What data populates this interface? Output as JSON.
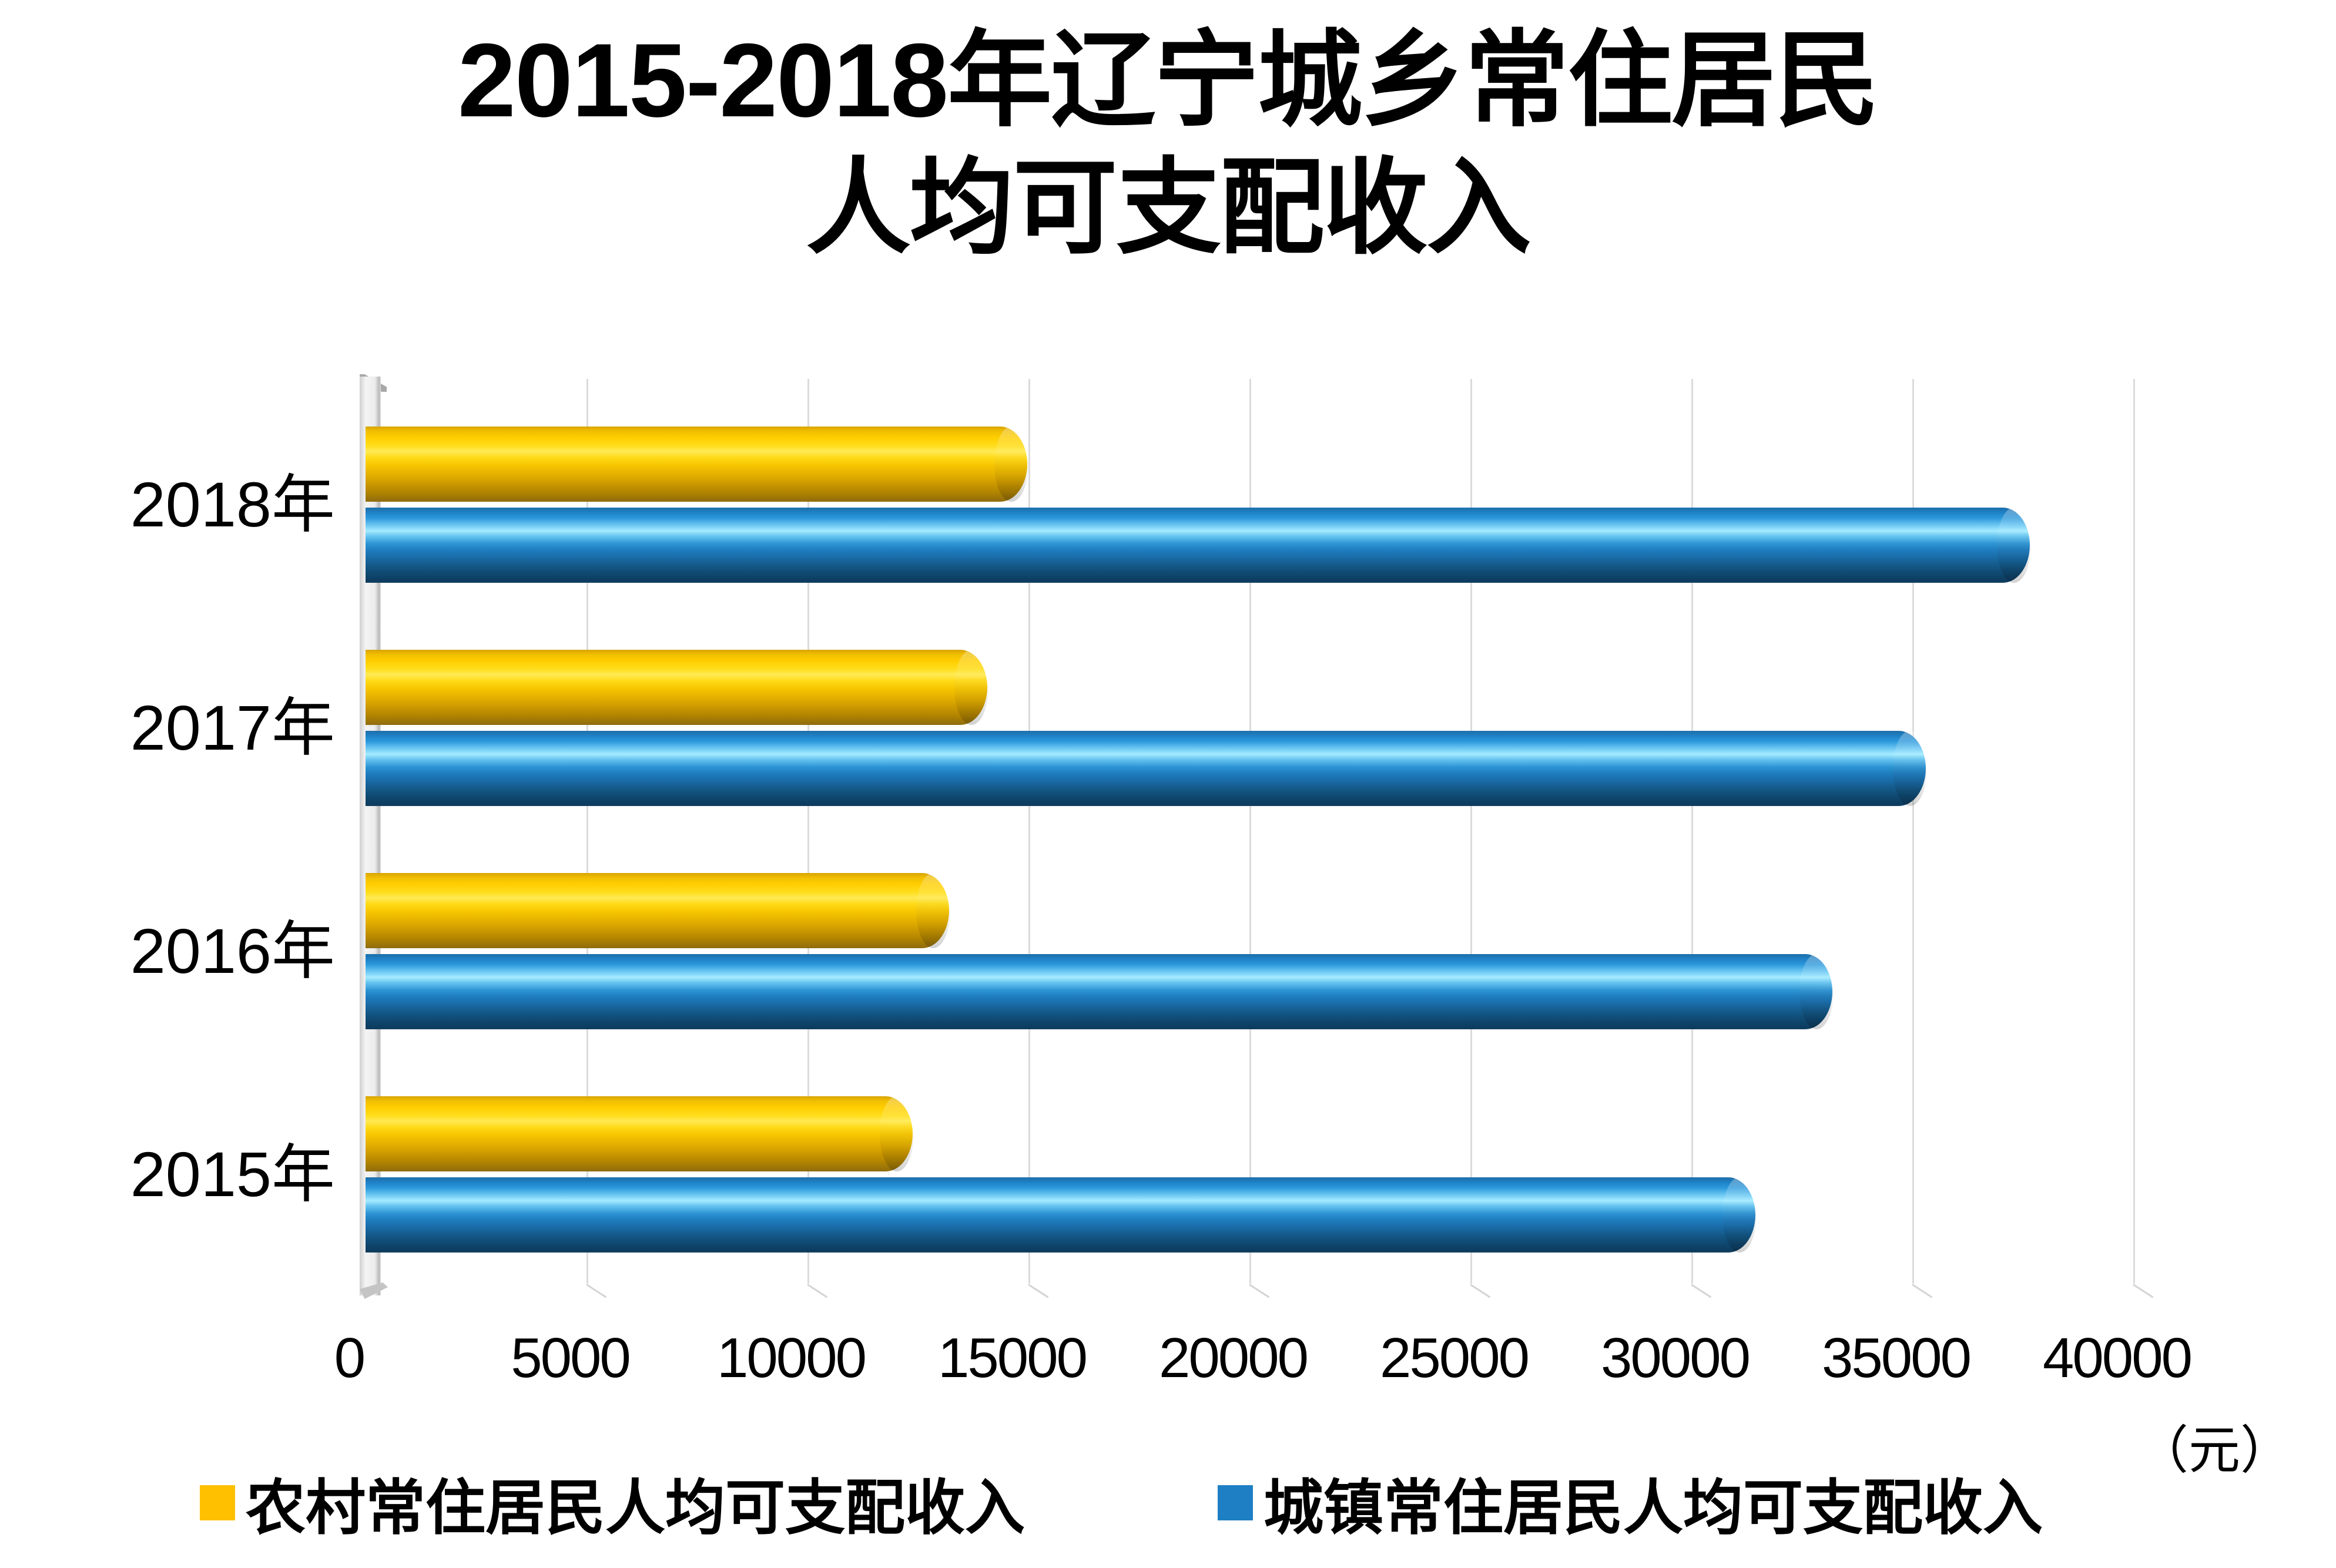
{
  "title": {
    "line1": "2015-2018年辽宁城乡常住居民",
    "line2": "人均可支配收入"
  },
  "axis": {
    "ticks": [
      0,
      5000,
      10000,
      15000,
      20000,
      25000,
      30000,
      35000,
      40000
    ],
    "max": 40000,
    "unit_label": "（元）"
  },
  "legend": {
    "items": [
      {
        "label": "农村常住居民人均可支配收入",
        "color": "#FFC000"
      },
      {
        "label": "城镇常住居民人均可支配收入",
        "color": "#1E7FC4"
      }
    ]
  },
  "chart_data": {
    "type": "bar",
    "orientation": "horizontal",
    "title": "2015-2018年辽宁城乡常住居民人均可支配收入",
    "categories": [
      "2018年",
      "2017年",
      "2016年",
      "2015年"
    ],
    "series": [
      {
        "name": "农村常住居民人均可支配收入",
        "key": "rural",
        "color": "#FFC000",
        "values": [
          14656,
          13747,
          12881,
          12057
        ]
      },
      {
        "name": "城镇常住居民人均可支配收入",
        "key": "urban",
        "color": "#1E7FC4",
        "values": [
          37342,
          34993,
          32876,
          31126
        ]
      }
    ],
    "xlim": [
      0,
      40000
    ],
    "x_unit": "元",
    "grid": true,
    "legend_position": "bottom"
  }
}
